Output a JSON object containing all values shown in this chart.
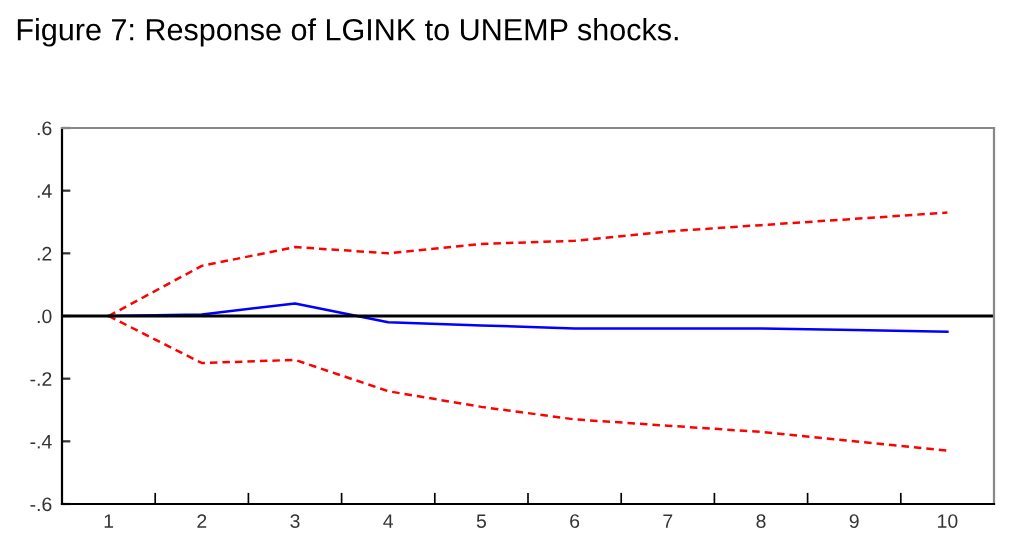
{
  "chart_data": {
    "type": "line",
    "title": "Figure 7: Response of LGINK to UNEMP shocks.",
    "categories": [
      "1",
      "2",
      "3",
      "4",
      "5",
      "6",
      "7",
      "8",
      "9",
      "10"
    ],
    "series": [
      {
        "color": "#ff0000",
        "line_style": "dashed",
        "values": [
          0,
          0.16,
          0.22,
          0.2,
          0.23,
          0.24,
          0.27,
          0.29,
          0.31,
          0.33
        ]
      },
      {
        "color": "#0000ff",
        "line_style": "solid",
        "values": [
          0,
          0.005,
          0.04,
          -0.02,
          -0.03,
          -0.04,
          -0.04,
          -0.04,
          -0.045,
          -0.05
        ]
      },
      {
        "color": "#ff0000",
        "line_style": "dashed",
        "values": [
          0,
          -0.15,
          -0.14,
          -0.24,
          -0.29,
          -0.33,
          -0.35,
          -0.37,
          -0.4,
          -0.43
        ]
      }
    ],
    "ylim": [
      -0.6,
      0.6
    ],
    "yticks": [
      {
        "value": -0.6,
        "label": "-.6"
      },
      {
        "value": -0.4,
        "label": "-.4"
      },
      {
        "value": -0.2,
        "label": "-.2"
      },
      {
        "value": 0,
        "label": ".0"
      },
      {
        "value": 0.2,
        "label": ".2"
      },
      {
        "value": 0.4,
        "label": ".4"
      },
      {
        "value": 0.6,
        "label": ".6"
      }
    ],
    "ref_lines": [
      {
        "axis": "y",
        "value": 0,
        "color": "#000000"
      }
    ],
    "grid": false,
    "legend": false
  }
}
